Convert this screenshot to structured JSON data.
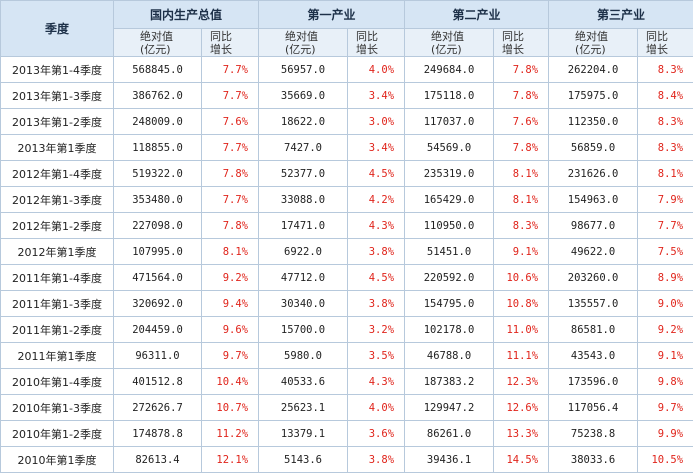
{
  "table": {
    "header": {
      "quarter": "季度",
      "groups": [
        "国内生产总值",
        "第一产业",
        "第二产业",
        "第三产业"
      ],
      "abs_label": [
        "绝对值",
        "(亿元)"
      ],
      "yoy_label": [
        "同比",
        "增长"
      ]
    },
    "rows": [
      {
        "quarter": "2013年第1-4季度",
        "v": [
          "568845.0",
          "7.7%",
          "56957.0",
          "4.0%",
          "249684.0",
          "7.8%",
          "262204.0",
          "8.3%"
        ]
      },
      {
        "quarter": "2013年第1-3季度",
        "v": [
          "386762.0",
          "7.7%",
          "35669.0",
          "3.4%",
          "175118.0",
          "7.8%",
          "175975.0",
          "8.4%"
        ]
      },
      {
        "quarter": "2013年第1-2季度",
        "v": [
          "248009.0",
          "7.6%",
          "18622.0",
          "3.0%",
          "117037.0",
          "7.6%",
          "112350.0",
          "8.3%"
        ]
      },
      {
        "quarter": "2013年第1季度",
        "v": [
          "118855.0",
          "7.7%",
          "7427.0",
          "3.4%",
          "54569.0",
          "7.8%",
          "56859.0",
          "8.3%"
        ]
      },
      {
        "quarter": "2012年第1-4季度",
        "v": [
          "519322.0",
          "7.8%",
          "52377.0",
          "4.5%",
          "235319.0",
          "8.1%",
          "231626.0",
          "8.1%"
        ]
      },
      {
        "quarter": "2012年第1-3季度",
        "v": [
          "353480.0",
          "7.7%",
          "33088.0",
          "4.2%",
          "165429.0",
          "8.1%",
          "154963.0",
          "7.9%"
        ]
      },
      {
        "quarter": "2012年第1-2季度",
        "v": [
          "227098.0",
          "7.8%",
          "17471.0",
          "4.3%",
          "110950.0",
          "8.3%",
          "98677.0",
          "7.7%"
        ]
      },
      {
        "quarter": "2012年第1季度",
        "v": [
          "107995.0",
          "8.1%",
          "6922.0",
          "3.8%",
          "51451.0",
          "9.1%",
          "49622.0",
          "7.5%"
        ]
      },
      {
        "quarter": "2011年第1-4季度",
        "v": [
          "471564.0",
          "9.2%",
          "47712.0",
          "4.5%",
          "220592.0",
          "10.6%",
          "203260.0",
          "8.9%"
        ]
      },
      {
        "quarter": "2011年第1-3季度",
        "v": [
          "320692.0",
          "9.4%",
          "30340.0",
          "3.8%",
          "154795.0",
          "10.8%",
          "135557.0",
          "9.0%"
        ]
      },
      {
        "quarter": "2011年第1-2季度",
        "v": [
          "204459.0",
          "9.6%",
          "15700.0",
          "3.2%",
          "102178.0",
          "11.0%",
          "86581.0",
          "9.2%"
        ]
      },
      {
        "quarter": "2011年第1季度",
        "v": [
          "96311.0",
          "9.7%",
          "5980.0",
          "3.5%",
          "46788.0",
          "11.1%",
          "43543.0",
          "9.1%"
        ]
      },
      {
        "quarter": "2010年第1-4季度",
        "v": [
          "401512.8",
          "10.4%",
          "40533.6",
          "4.3%",
          "187383.2",
          "12.3%",
          "173596.0",
          "9.8%"
        ]
      },
      {
        "quarter": "2010年第1-3季度",
        "v": [
          "272626.7",
          "10.7%",
          "25623.1",
          "4.0%",
          "129947.2",
          "12.6%",
          "117056.4",
          "9.7%"
        ]
      },
      {
        "quarter": "2010年第1-2季度",
        "v": [
          "174878.8",
          "11.2%",
          "13379.1",
          "3.6%",
          "86261.0",
          "13.3%",
          "75238.8",
          "9.9%"
        ]
      },
      {
        "quarter": "2010年第1季度",
        "v": [
          "82613.4",
          "12.1%",
          "5143.6",
          "3.8%",
          "39436.1",
          "14.5%",
          "38033.6",
          "10.5%"
        ]
      }
    ],
    "colors": {
      "header_bg": "#d6e5f4",
      "subheader_bg": "#e8f0f8",
      "border": "#b7c9dc",
      "growth_text": "#e0241b"
    }
  }
}
